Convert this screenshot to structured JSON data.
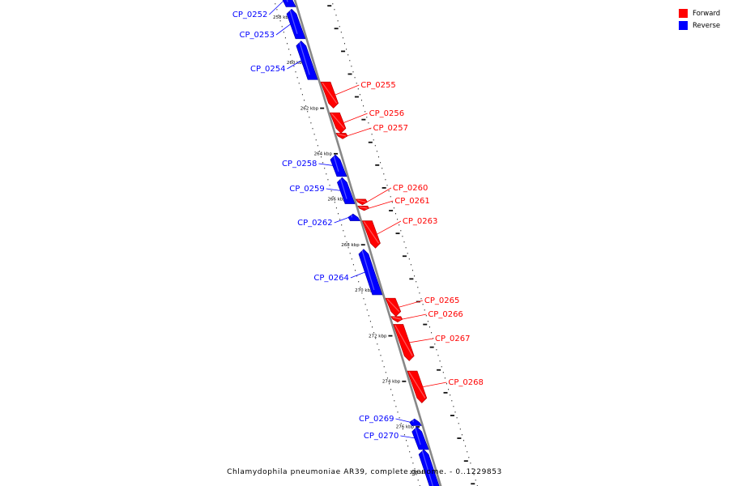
{
  "title": "Chlamydophila pneumoniae AR39, complete genome. - 0..1229853",
  "legend": [
    {
      "label": "Forward",
      "color": "#ff0000"
    },
    {
      "label": "Reverse",
      "color": "#0000ff"
    }
  ],
  "colors": {
    "forward": "#ff0000",
    "reverse": "#0000ff",
    "backbone": "#888888"
  },
  "ticks": [
    {
      "kbp": 258,
      "label": "258 kbp"
    },
    {
      "kbp": 260,
      "label": "260 kbp"
    },
    {
      "kbp": 262,
      "label": "262 kbp"
    },
    {
      "kbp": 264,
      "label": "264 kbp"
    },
    {
      "kbp": 266,
      "label": "266 kbp"
    },
    {
      "kbp": 268,
      "label": "268 kbp"
    },
    {
      "kbp": 270,
      "label": "270 kbp"
    },
    {
      "kbp": 272,
      "label": "272 kbp"
    },
    {
      "kbp": 274,
      "label": "274 kbp"
    },
    {
      "kbp": 276,
      "label": "276 kbp"
    },
    {
      "kbp": 278,
      "label": "278 kbp"
    }
  ],
  "genes": [
    {
      "name": "CP_0252",
      "strand": "reverse",
      "start_kbp": 257.0,
      "end_kbp": 257.55
    },
    {
      "name": "CP_0253",
      "strand": "reverse",
      "start_kbp": 257.65,
      "end_kbp": 258.95
    },
    {
      "name": "CP_0254",
      "strand": "reverse",
      "start_kbp": 259.05,
      "end_kbp": 260.75
    },
    {
      "name": "CP_0255",
      "strand": "forward",
      "start_kbp": 260.85,
      "end_kbp": 262.0
    },
    {
      "name": "CP_0256",
      "strand": "forward",
      "start_kbp": 262.2,
      "end_kbp": 263.1
    },
    {
      "name": "CP_0257",
      "strand": "forward",
      "start_kbp": 263.1,
      "end_kbp": 263.35
    },
    {
      "name": "CP_0258",
      "strand": "reverse",
      "start_kbp": 264.05,
      "end_kbp": 265.0
    },
    {
      "name": "CP_0259",
      "strand": "reverse",
      "start_kbp": 265.05,
      "end_kbp": 266.2
    },
    {
      "name": "CP_0260",
      "strand": "forward",
      "start_kbp": 266.0,
      "end_kbp": 266.25
    },
    {
      "name": "CP_0261",
      "strand": "forward",
      "start_kbp": 266.3,
      "end_kbp": 266.5
    },
    {
      "name": "CP_0262",
      "strand": "reverse",
      "start_kbp": 266.65,
      "end_kbp": 266.95
    },
    {
      "name": "CP_0263",
      "strand": "forward",
      "start_kbp": 266.95,
      "end_kbp": 268.15
    },
    {
      "name": "CP_0264",
      "strand": "reverse",
      "start_kbp": 268.2,
      "end_kbp": 270.2
    },
    {
      "name": "CP_0265",
      "strand": "forward",
      "start_kbp": 270.35,
      "end_kbp": 271.15
    },
    {
      "name": "CP_0266",
      "strand": "forward",
      "start_kbp": 271.15,
      "end_kbp": 271.4
    },
    {
      "name": "CP_0267",
      "strand": "forward",
      "start_kbp": 271.5,
      "end_kbp": 273.1
    },
    {
      "name": "CP_0268",
      "strand": "forward",
      "start_kbp": 273.55,
      "end_kbp": 274.95
    },
    {
      "name": "CP_0269",
      "strand": "reverse",
      "start_kbp": 275.65,
      "end_kbp": 275.95
    },
    {
      "name": "CP_0270",
      "strand": "reverse",
      "start_kbp": 276.0,
      "end_kbp": 277.0
    },
    {
      "name": "",
      "strand": "reverse",
      "start_kbp": 277.0,
      "end_kbp": 279.0
    }
  ]
}
